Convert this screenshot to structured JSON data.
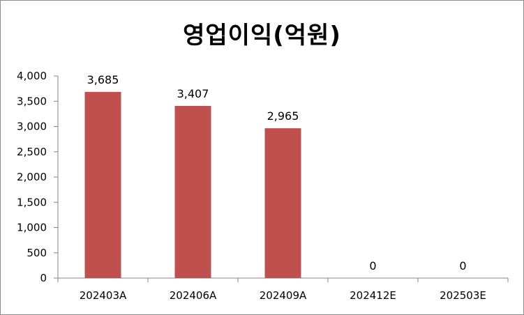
{
  "chart_data": {
    "type": "bar",
    "title": "영업이익(억원)",
    "categories": [
      "202403A",
      "202406A",
      "202409A",
      "202412E",
      "202503E"
    ],
    "values": [
      3685,
      3407,
      2965,
      0,
      0
    ],
    "data_labels": [
      "3,685",
      "3,407",
      "2,965",
      "0",
      "0"
    ],
    "y_ticks": [
      "0",
      "500",
      "1,000",
      "1,500",
      "2,000",
      "2,500",
      "3,000",
      "3,500",
      "4,000"
    ],
    "ylim": [
      0,
      4000
    ],
    "y_step": 500,
    "grid": false,
    "legend": "none",
    "bar_color": "#c0504d",
    "axis_color": "#868686"
  }
}
